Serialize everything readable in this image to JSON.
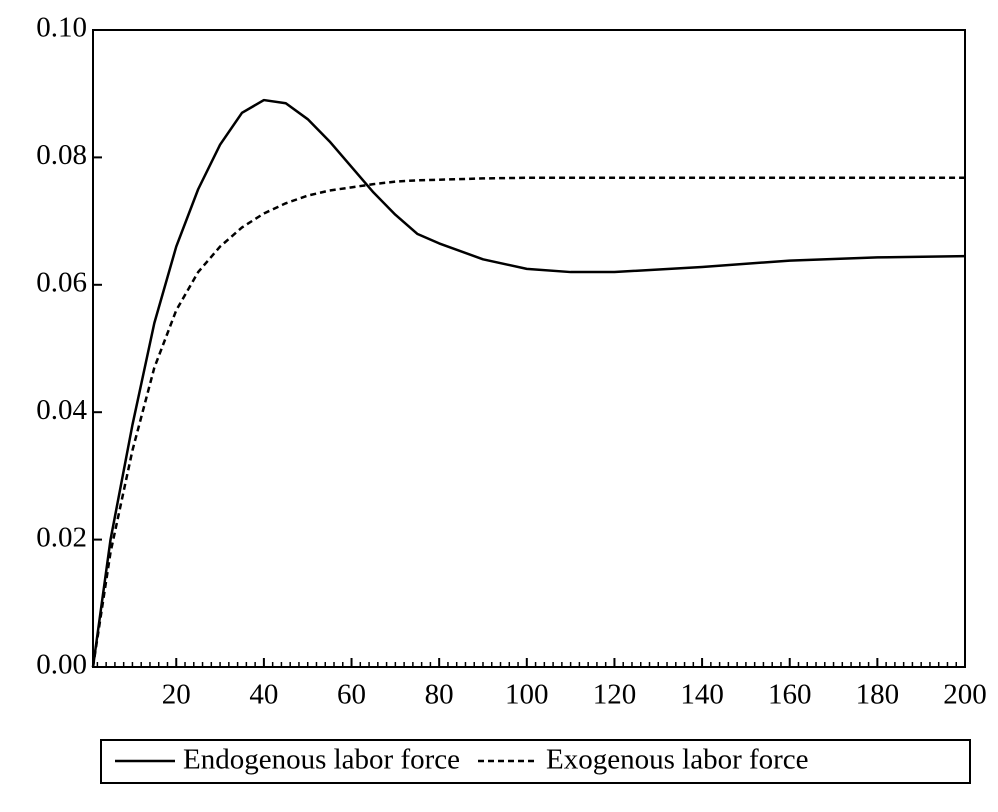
{
  "chart_data": {
    "type": "line",
    "x": [
      1,
      5,
      10,
      15,
      20,
      25,
      30,
      35,
      40,
      45,
      50,
      55,
      60,
      65,
      70,
      75,
      80,
      90,
      100,
      110,
      120,
      140,
      160,
      180,
      200
    ],
    "series": [
      {
        "name": "Endogenous labor force",
        "color": "#000000",
        "dash": "solid",
        "values": [
          0,
          0.02,
          0.038,
          0.054,
          0.066,
          0.075,
          0.082,
          0.087,
          0.089,
          0.0885,
          0.086,
          0.0825,
          0.0785,
          0.0745,
          0.071,
          0.068,
          0.0665,
          0.064,
          0.0625,
          0.062,
          0.062,
          0.0628,
          0.0638,
          0.0643,
          0.0645
        ]
      },
      {
        "name": "Exogenous labor force",
        "color": "#000000",
        "dash": "dashed",
        "values": [
          0,
          0.018,
          0.034,
          0.047,
          0.056,
          0.062,
          0.066,
          0.069,
          0.0712,
          0.0728,
          0.074,
          0.0748,
          0.0753,
          0.0758,
          0.0762,
          0.0764,
          0.0765,
          0.0767,
          0.0768,
          0.0768,
          0.0768,
          0.0768,
          0.0768,
          0.0768,
          0.0768
        ]
      }
    ],
    "xlim": [
      1,
      200
    ],
    "xticks": [
      20,
      40,
      60,
      80,
      100,
      120,
      140,
      160,
      180,
      200
    ],
    "xminorticks": [
      2,
      4,
      6,
      8,
      10,
      12,
      14,
      16,
      18,
      22,
      24,
      26,
      28,
      30,
      32,
      34,
      36,
      38,
      42,
      44,
      46,
      48,
      50,
      52,
      54,
      56,
      58,
      62,
      64,
      66,
      68,
      70,
      72,
      74,
      76,
      78,
      82,
      84,
      86,
      88,
      90,
      92,
      94,
      96,
      98,
      102,
      104,
      106,
      108,
      110,
      112,
      114,
      116,
      118,
      122,
      124,
      126,
      128,
      130,
      132,
      134,
      136,
      138,
      142,
      144,
      146,
      148,
      150,
      152,
      154,
      156,
      158,
      162,
      164,
      166,
      168,
      170,
      172,
      174,
      176,
      178,
      182,
      184,
      186,
      188,
      190,
      192,
      194,
      196,
      198
    ],
    "ylim": [
      0,
      0.1
    ],
    "yticks": [
      {
        "value": 0,
        "label": "0.00"
      },
      {
        "value": 0.02,
        "label": "0.02"
      },
      {
        "value": 0.04,
        "label": "0.04"
      },
      {
        "value": 0.06,
        "label": "0.06"
      },
      {
        "value": 0.08,
        "label": "0.08"
      },
      {
        "value": 0.1,
        "label": "0.10"
      }
    ],
    "grid": false,
    "legend": "bottom"
  }
}
